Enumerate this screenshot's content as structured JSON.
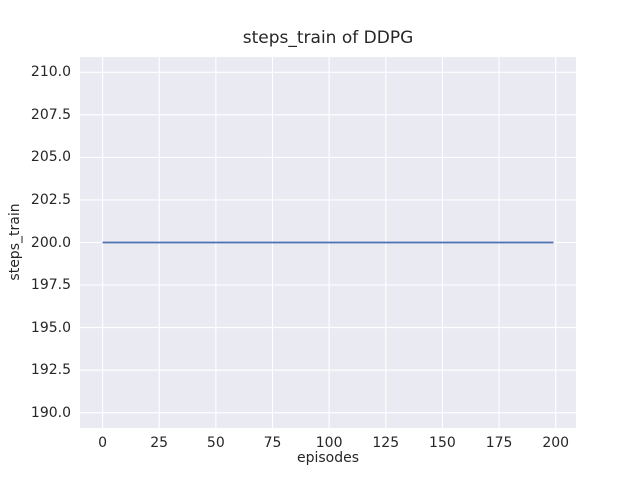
{
  "chart_data": {
    "type": "line",
    "title": "steps_train of DDPG",
    "xlabel": "episodes",
    "ylabel": "steps_train",
    "xlim": [
      -9.95,
      208.95
    ],
    "ylim": [
      189.1,
      210.9
    ],
    "grid": true,
    "legend": false,
    "plot_background": "#eaeaf2",
    "gridline_color": "#ffffff",
    "text_color": "#262626",
    "xticks": {
      "values": [
        0,
        25,
        50,
        75,
        100,
        125,
        150,
        175,
        200
      ],
      "labels": [
        "0",
        "25",
        "50",
        "75",
        "100",
        "125",
        "150",
        "175",
        "200"
      ]
    },
    "yticks": {
      "values": [
        190.0,
        192.5,
        195.0,
        197.5,
        200.0,
        202.5,
        205.0,
        207.5,
        210.0
      ],
      "labels": [
        "190.0",
        "192.5",
        "195.0",
        "197.5",
        "200.0",
        "202.5",
        "205.0",
        "207.5",
        "210.0"
      ]
    },
    "series": [
      {
        "name": "steps_train",
        "color": "#4c72b0",
        "line_width": 1.8,
        "x": [
          0,
          199
        ],
        "y": [
          200,
          200
        ],
        "note": "constant value 200 for every episode from 0 to 199"
      }
    ]
  }
}
